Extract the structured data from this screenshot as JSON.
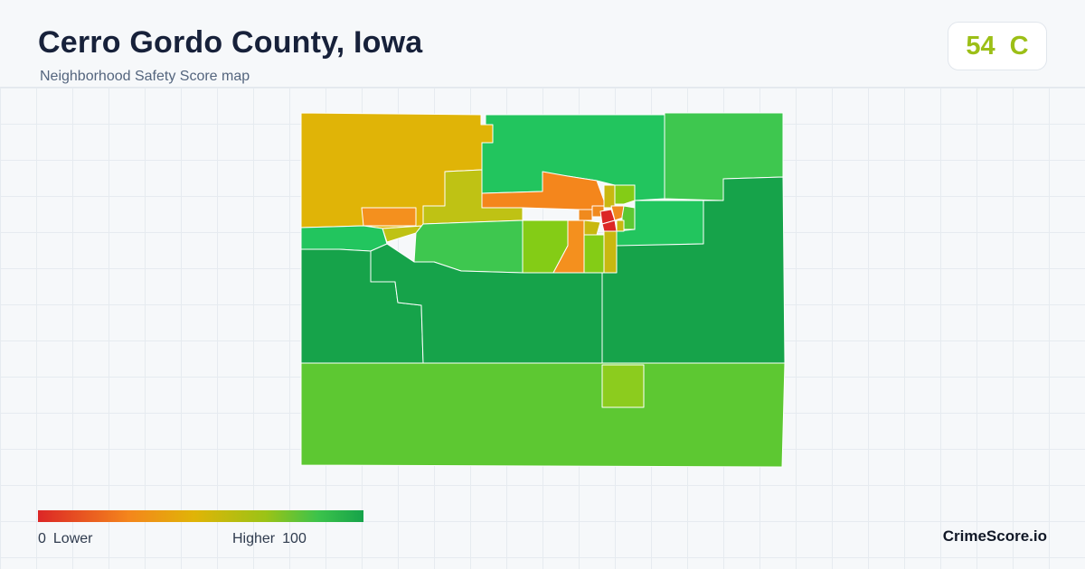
{
  "header": {
    "title": "Cerro Gordo County, Iowa",
    "subtitle": "Neighborhood Safety Score map"
  },
  "score": {
    "value": "54",
    "grade": "C",
    "color": "#9cbf17"
  },
  "legend": {
    "min": "0",
    "min_label": "Lower",
    "max_label": "Higher",
    "max": "100",
    "colors": [
      "#dc2626",
      "#f4861c",
      "#e0b407",
      "#9bc316",
      "#3cc34b",
      "#16a34a"
    ]
  },
  "brand": "CrimeScore.io",
  "map": {
    "stroke_color": "#ffffff",
    "region_colors": {
      "northwest": "#e0b407",
      "north_central": "#22c55e",
      "northeast": "#3ec74f",
      "mason_city_west": "#f4861c",
      "west_band": "#bfc214",
      "west_strip": "#22c55e",
      "central_south": "#3ec74f",
      "yellowgreen_a": "#84cc16",
      "orange_c": "#f4901e",
      "east_mid": "#22c55e",
      "east_big": "#16a34a",
      "west_big": "#16a34a",
      "south_band": "#5dc832",
      "south_small": "#8ccc1e",
      "urban_red": "#dc2626",
      "urban_orange": "#f08a1e",
      "urban_yellow": "#c8b810",
      "urban_green": "#5dc832"
    }
  }
}
